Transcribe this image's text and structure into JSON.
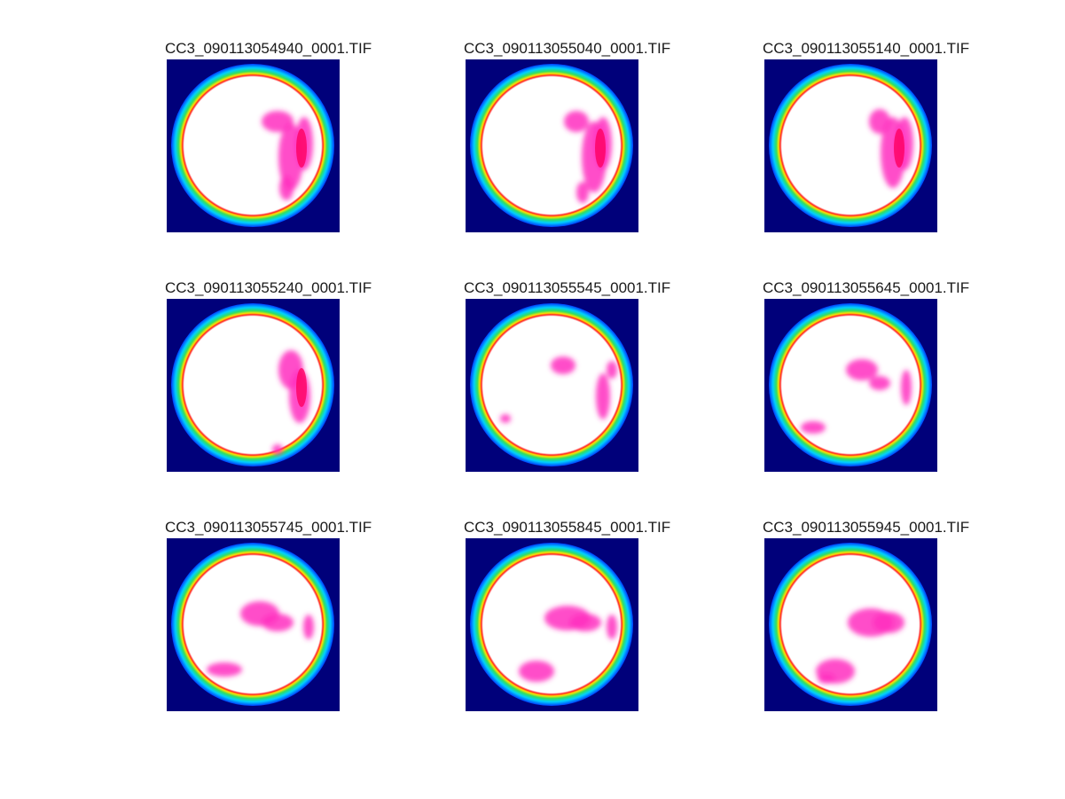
{
  "figure": {
    "panels": [
      {
        "title": "CC3_090113054940_0001.TIF",
        "variant": 0
      },
      {
        "title": "CC3_090113055040_0001.TIF",
        "variant": 1
      },
      {
        "title": "CC3_090113055140_0001.TIF",
        "variant": 2
      },
      {
        "title": "CC3_090113055240_0001.TIF",
        "variant": 3
      },
      {
        "title": "CC3_090113055545_0001.TIF",
        "variant": 4
      },
      {
        "title": "CC3_090113055645_0001.TIF",
        "variant": 5
      },
      {
        "title": "CC3_090113055745_0001.TIF",
        "variant": 6
      },
      {
        "title": "CC3_090113055845_0001.TIF",
        "variant": 7
      },
      {
        "title": "CC3_090113055945_0001.TIF",
        "variant": 8
      }
    ],
    "colors": {
      "background": "#00007a",
      "ring_outer": "#0040ff",
      "ring_cyan": "#00d0ff",
      "ring_green": "#30e060",
      "ring_yellow": "#ffe000",
      "ring_red": "#ff2020",
      "sky": "#ffffff",
      "cloud": "#ff30c0",
      "cloud_core": "#ff0060"
    }
  }
}
